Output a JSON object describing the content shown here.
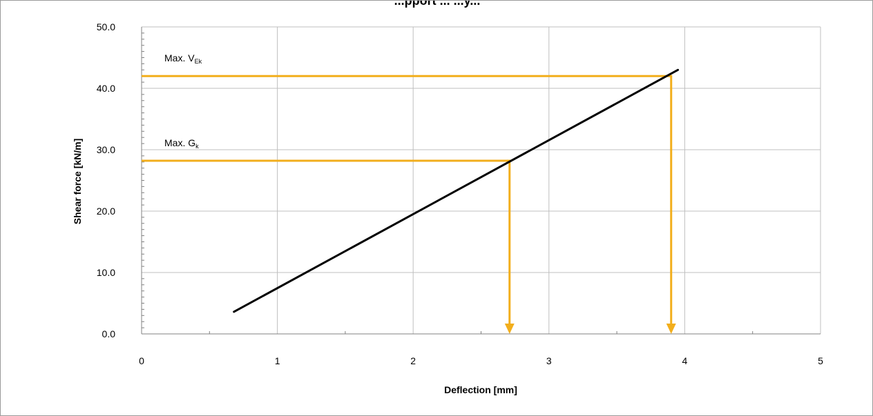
{
  "chart_data": {
    "type": "line",
    "title": "...pport ... ...y...",
    "xlabel": "Deflection [mm]",
    "ylabel": "Shear force [kN/m]",
    "xlim": [
      0,
      5
    ],
    "ylim": [
      0,
      50
    ],
    "x_ticks": [
      0,
      1,
      2,
      3,
      4,
      5
    ],
    "x_tick_labels": [
      "0",
      "1",
      "2",
      "3",
      "4",
      "5"
    ],
    "y_ticks": [
      0,
      10,
      20,
      30,
      40,
      50
    ],
    "y_tick_labels": [
      "0.0",
      "10.0",
      "20.0",
      "30.0",
      "40.0",
      "50.0"
    ],
    "grid": true,
    "series": [
      {
        "x": [
          0.68,
          3.95
        ],
        "y": [
          3.6,
          43.0
        ],
        "color": "#000000"
      }
    ],
    "annotations": [
      {
        "label": "Max. V",
        "subscript": "Ek",
        "y": 42.0,
        "x": 3.9,
        "color": "#f2ae1c"
      },
      {
        "label": "Max. G",
        "subscript": "k",
        "y": 28.2,
        "x": 2.71,
        "color": "#f2ae1c"
      }
    ]
  }
}
